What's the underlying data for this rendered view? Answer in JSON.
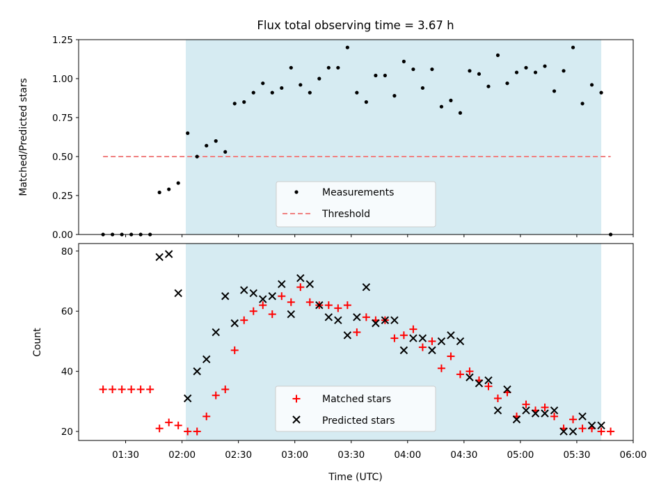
{
  "chart_data": [
    {
      "type": "scatter",
      "title": "Flux total observing time = 3.67 h",
      "ylabel": "Matched/Predicted stars",
      "xlabel": "",
      "xlim": [
        "01:05",
        "06:00"
      ],
      "ylim": [
        0,
        1.25
      ],
      "y_ticks": [
        0,
        0.25,
        0.5,
        0.75,
        1.0,
        1.25
      ],
      "y_tick_labels": [
        "0.00",
        "0.25",
        "0.50",
        "0.75",
        "1.00",
        "1.25"
      ],
      "observing_window": [
        "02:02",
        "05:43"
      ],
      "threshold": {
        "name": "Threshold",
        "value": 0.5,
        "x_range": [
          "01:18",
          "05:48"
        ],
        "color": "#f08080",
        "style": "dashed"
      },
      "series": [
        {
          "name": "Measurements",
          "color": "#000000",
          "marker": "dot",
          "x": [
            "01:18",
            "01:23",
            "01:28",
            "01:33",
            "01:38",
            "01:43",
            "01:48",
            "01:53",
            "01:58",
            "02:03",
            "02:08",
            "02:13",
            "02:18",
            "02:23",
            "02:28",
            "02:33",
            "02:38",
            "02:43",
            "02:48",
            "02:53",
            "02:58",
            "03:03",
            "03:08",
            "03:13",
            "03:18",
            "03:23",
            "03:28",
            "03:33",
            "03:38",
            "03:43",
            "03:48",
            "03:53",
            "03:58",
            "04:03",
            "04:08",
            "04:13",
            "04:18",
            "04:23",
            "04:28",
            "04:33",
            "04:38",
            "04:43",
            "04:48",
            "04:53",
            "04:58",
            "05:03",
            "05:08",
            "05:13",
            "05:18",
            "05:23",
            "05:28",
            "05:33",
            "05:38",
            "05:43",
            "05:48"
          ],
          "y": [
            0,
            0,
            0,
            0,
            0,
            0,
            0.27,
            0.29,
            0.33,
            0.65,
            0.5,
            0.57,
            0.6,
            0.53,
            0.84,
            0.85,
            0.91,
            0.97,
            0.91,
            0.94,
            1.07,
            0.96,
            0.91,
            1.0,
            1.07,
            1.07,
            1.2,
            0.91,
            0.85,
            1.02,
            1.02,
            0.89,
            1.11,
            1.06,
            0.94,
            1.06,
            0.82,
            0.86,
            0.78,
            1.05,
            1.03,
            0.95,
            1.15,
            0.97,
            1.04,
            1.07,
            1.04,
            1.08,
            0.92,
            1.05,
            1.2,
            0.84,
            0.96,
            0.91,
            0
          ]
        }
      ],
      "legend": {
        "placement": "lower center"
      },
      "background": "#ffffff",
      "window_color": "#add8e6"
    },
    {
      "type": "scatter",
      "title": "",
      "xlabel": "Time (UTC)",
      "ylabel": "Count",
      "xlim": [
        "01:05",
        "06:00"
      ],
      "ylim": [
        17,
        82.5
      ],
      "x_ticks": [
        "01:30",
        "02:00",
        "02:30",
        "03:00",
        "03:30",
        "04:00",
        "04:30",
        "05:00",
        "05:30",
        "06:00"
      ],
      "y_ticks": [
        20,
        40,
        60,
        80
      ],
      "observing_window": [
        "02:02",
        "05:43"
      ],
      "series": [
        {
          "name": "Matched stars",
          "color": "#ff0000",
          "marker": "plus",
          "x": [
            "01:18",
            "01:23",
            "01:28",
            "01:33",
            "01:38",
            "01:43",
            "01:48",
            "01:53",
            "01:58",
            "02:03",
            "02:08",
            "02:13",
            "02:18",
            "02:23",
            "02:28",
            "02:33",
            "02:38",
            "02:43",
            "02:48",
            "02:53",
            "02:58",
            "03:03",
            "03:08",
            "03:13",
            "03:18",
            "03:23",
            "03:28",
            "03:33",
            "03:38",
            "03:43",
            "03:48",
            "03:53",
            "03:58",
            "04:03",
            "04:08",
            "04:13",
            "04:18",
            "04:23",
            "04:28",
            "04:33",
            "04:38",
            "04:43",
            "04:48",
            "04:53",
            "04:58",
            "05:03",
            "05:08",
            "05:13",
            "05:18",
            "05:23",
            "05:28",
            "05:33",
            "05:38",
            "05:43",
            "05:48"
          ],
          "y": [
            34,
            34,
            34,
            34,
            34,
            34,
            21,
            23,
            22,
            20,
            20,
            25,
            32,
            34,
            47,
            57,
            60,
            62,
            59,
            65,
            63,
            68,
            63,
            62,
            62,
            61,
            62,
            53,
            58,
            57,
            57,
            51,
            52,
            54,
            48,
            50,
            41,
            45,
            39,
            40,
            37,
            35,
            31,
            33,
            25,
            29,
            27,
            28,
            25,
            21,
            24,
            21,
            21,
            20,
            20
          ]
        },
        {
          "name": "Predicted stars",
          "color": "#000000",
          "marker": "x",
          "x": [
            "01:48",
            "01:53",
            "01:58",
            "02:03",
            "02:08",
            "02:13",
            "02:18",
            "02:23",
            "02:28",
            "02:33",
            "02:38",
            "02:43",
            "02:48",
            "02:53",
            "02:58",
            "03:03",
            "03:08",
            "03:13",
            "03:18",
            "03:23",
            "03:28",
            "03:33",
            "03:38",
            "03:43",
            "03:48",
            "03:53",
            "03:58",
            "04:03",
            "04:08",
            "04:13",
            "04:18",
            "04:23",
            "04:28",
            "04:33",
            "04:38",
            "04:43",
            "04:48",
            "04:53",
            "04:58",
            "05:03",
            "05:08",
            "05:13",
            "05:18",
            "05:23",
            "05:28",
            "05:33",
            "05:38",
            "05:43"
          ],
          "y": [
            78,
            79,
            66,
            31,
            40,
            44,
            53,
            65,
            56,
            67,
            66,
            64,
            65,
            69,
            59,
            71,
            69,
            62,
            58,
            57,
            52,
            58,
            68,
            56,
            57,
            57,
            47,
            51,
            51,
            47,
            50,
            52,
            50,
            38,
            36,
            37,
            27,
            34,
            24,
            27,
            26,
            26,
            27,
            20,
            20,
            25,
            22,
            22
          ]
        }
      ],
      "legend": {
        "placement": "lower center"
      }
    }
  ]
}
